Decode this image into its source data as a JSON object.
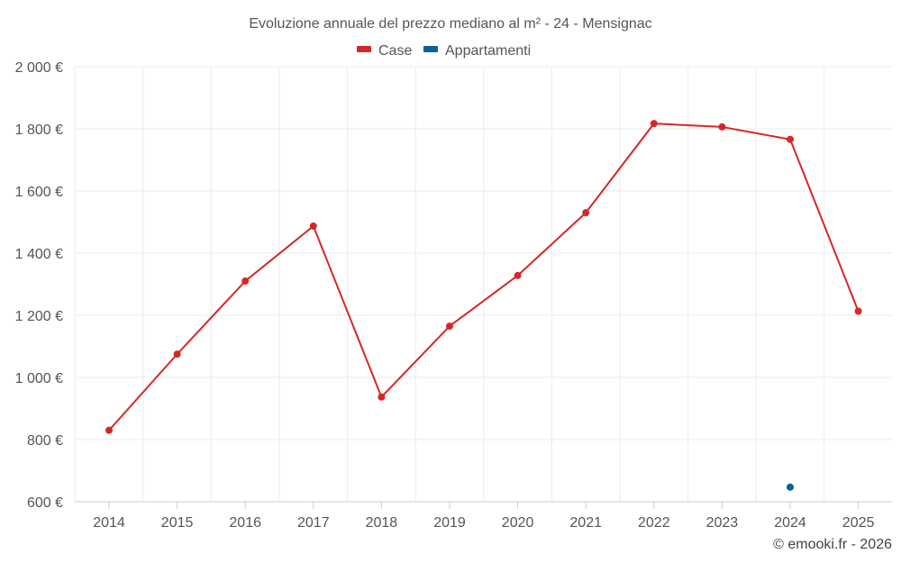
{
  "chart_data": {
    "type": "line",
    "title": "Evoluzione annuale del prezzo mediano al m² - 24 - Mensignac",
    "categories": [
      "2014",
      "2015",
      "2016",
      "2017",
      "2018",
      "2019",
      "2020",
      "2021",
      "2022",
      "2023",
      "2024",
      "2025"
    ],
    "series": [
      {
        "name": "Case",
        "color": "#d62728",
        "values": [
          830,
          1075,
          1310,
          1487,
          937,
          1165,
          1328,
          1530,
          1817,
          1806,
          1766,
          1213
        ]
      },
      {
        "name": "Appartamenti",
        "color": "#08629c",
        "values": [
          null,
          null,
          null,
          null,
          null,
          null,
          null,
          null,
          null,
          null,
          647,
          null
        ]
      }
    ],
    "ylim": [
      600,
      2000
    ],
    "yticks": [
      600,
      800,
      1000,
      1200,
      1400,
      1600,
      1800,
      2000
    ],
    "ytick_labels": [
      "600 €",
      "800 €",
      "1 000 €",
      "1 200 €",
      "1 400 €",
      "1 600 €",
      "1 800 €",
      "2 000 €"
    ],
    "xlabel": "",
    "ylabel": "",
    "grid": true,
    "legend_position": "top-center"
  },
  "credit": "© emooki.fr - 2026"
}
